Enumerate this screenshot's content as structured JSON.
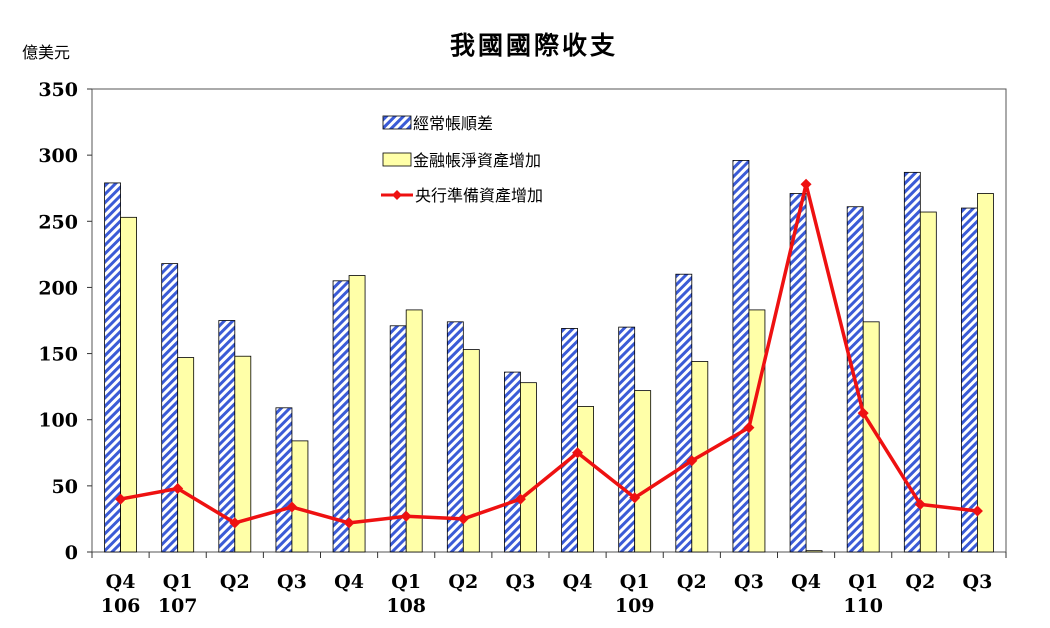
{
  "chart_data": {
    "type": "bar",
    "title": "我國國際收支",
    "unit_label": "億美元",
    "ylim": [
      0,
      350
    ],
    "yticks": [
      "0",
      "50",
      "100",
      "150",
      "200",
      "250",
      "300",
      "350"
    ],
    "grid": false,
    "legend_position": "top-center",
    "quarters": [
      "Q4",
      "Q1",
      "Q2",
      "Q3",
      "Q4",
      "Q1",
      "Q2",
      "Q3",
      "Q4",
      "Q1",
      "Q2",
      "Q3",
      "Q4",
      "Q1",
      "Q2",
      "Q3"
    ],
    "year_labels": [
      "106",
      "107",
      "",
      "",
      "",
      "108",
      "",
      "",
      "",
      "109",
      "",
      "",
      "",
      "110",
      "",
      ""
    ],
    "series": [
      {
        "name": "經常帳順差",
        "type": "bar",
        "color": "#3b5bd6",
        "values": [
          279,
          218,
          175,
          109,
          205,
          171,
          174,
          136,
          169,
          170,
          210,
          296,
          271,
          261,
          287,
          260
        ]
      },
      {
        "name": "金融帳淨資產增加",
        "type": "bar",
        "color": "#ffffa8",
        "values": [
          253,
          147,
          148,
          84,
          209,
          183,
          153,
          128,
          110,
          122,
          144,
          183,
          1,
          174,
          257,
          271
        ]
      },
      {
        "name": "央行準備資產增加",
        "type": "line",
        "color": "#ee1111",
        "values": [
          40,
          48,
          22,
          34,
          22,
          27,
          25,
          40,
          75,
          41,
          69,
          94,
          278,
          105,
          36,
          31
        ]
      }
    ]
  }
}
